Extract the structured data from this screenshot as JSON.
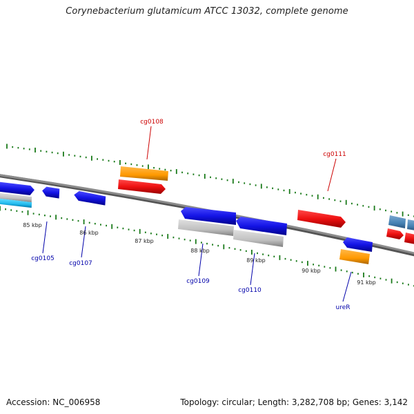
{
  "title": "Corynebacterium glutamicum ATCC 13032, complete genome",
  "footer": {
    "accession": "Accession: NC_006958",
    "topology": "Topology: circular; Length: 3,282,708 bp; Genes: 3,142"
  },
  "colors": {
    "backbone": "#7a7a7a",
    "tick": "#1a7a1a",
    "label_forward": "#cc0000",
    "label_reverse": "#0000aa",
    "blue_feature": "#1414e6",
    "red_feature": "#ee1111",
    "orange_feature": "#ff9900",
    "gray_feature": "#c0c0c0",
    "cyan_feature": "#22bbee",
    "steel_feature": "#4682b4"
  },
  "kbp_labels": [
    "85 kbp",
    "86 kbp",
    "87 kbp",
    "88 kbp",
    "89 kbp",
    "90 kbp",
    "91 kbp"
  ],
  "gene_labels": {
    "cg0108": "cg0108",
    "cg0111": "cg0111",
    "cg0105": "cg0105",
    "cg0107": "cg0107",
    "cg0109": "cg0109",
    "cg0110": "cg0110",
    "ureR": "ureR"
  }
}
